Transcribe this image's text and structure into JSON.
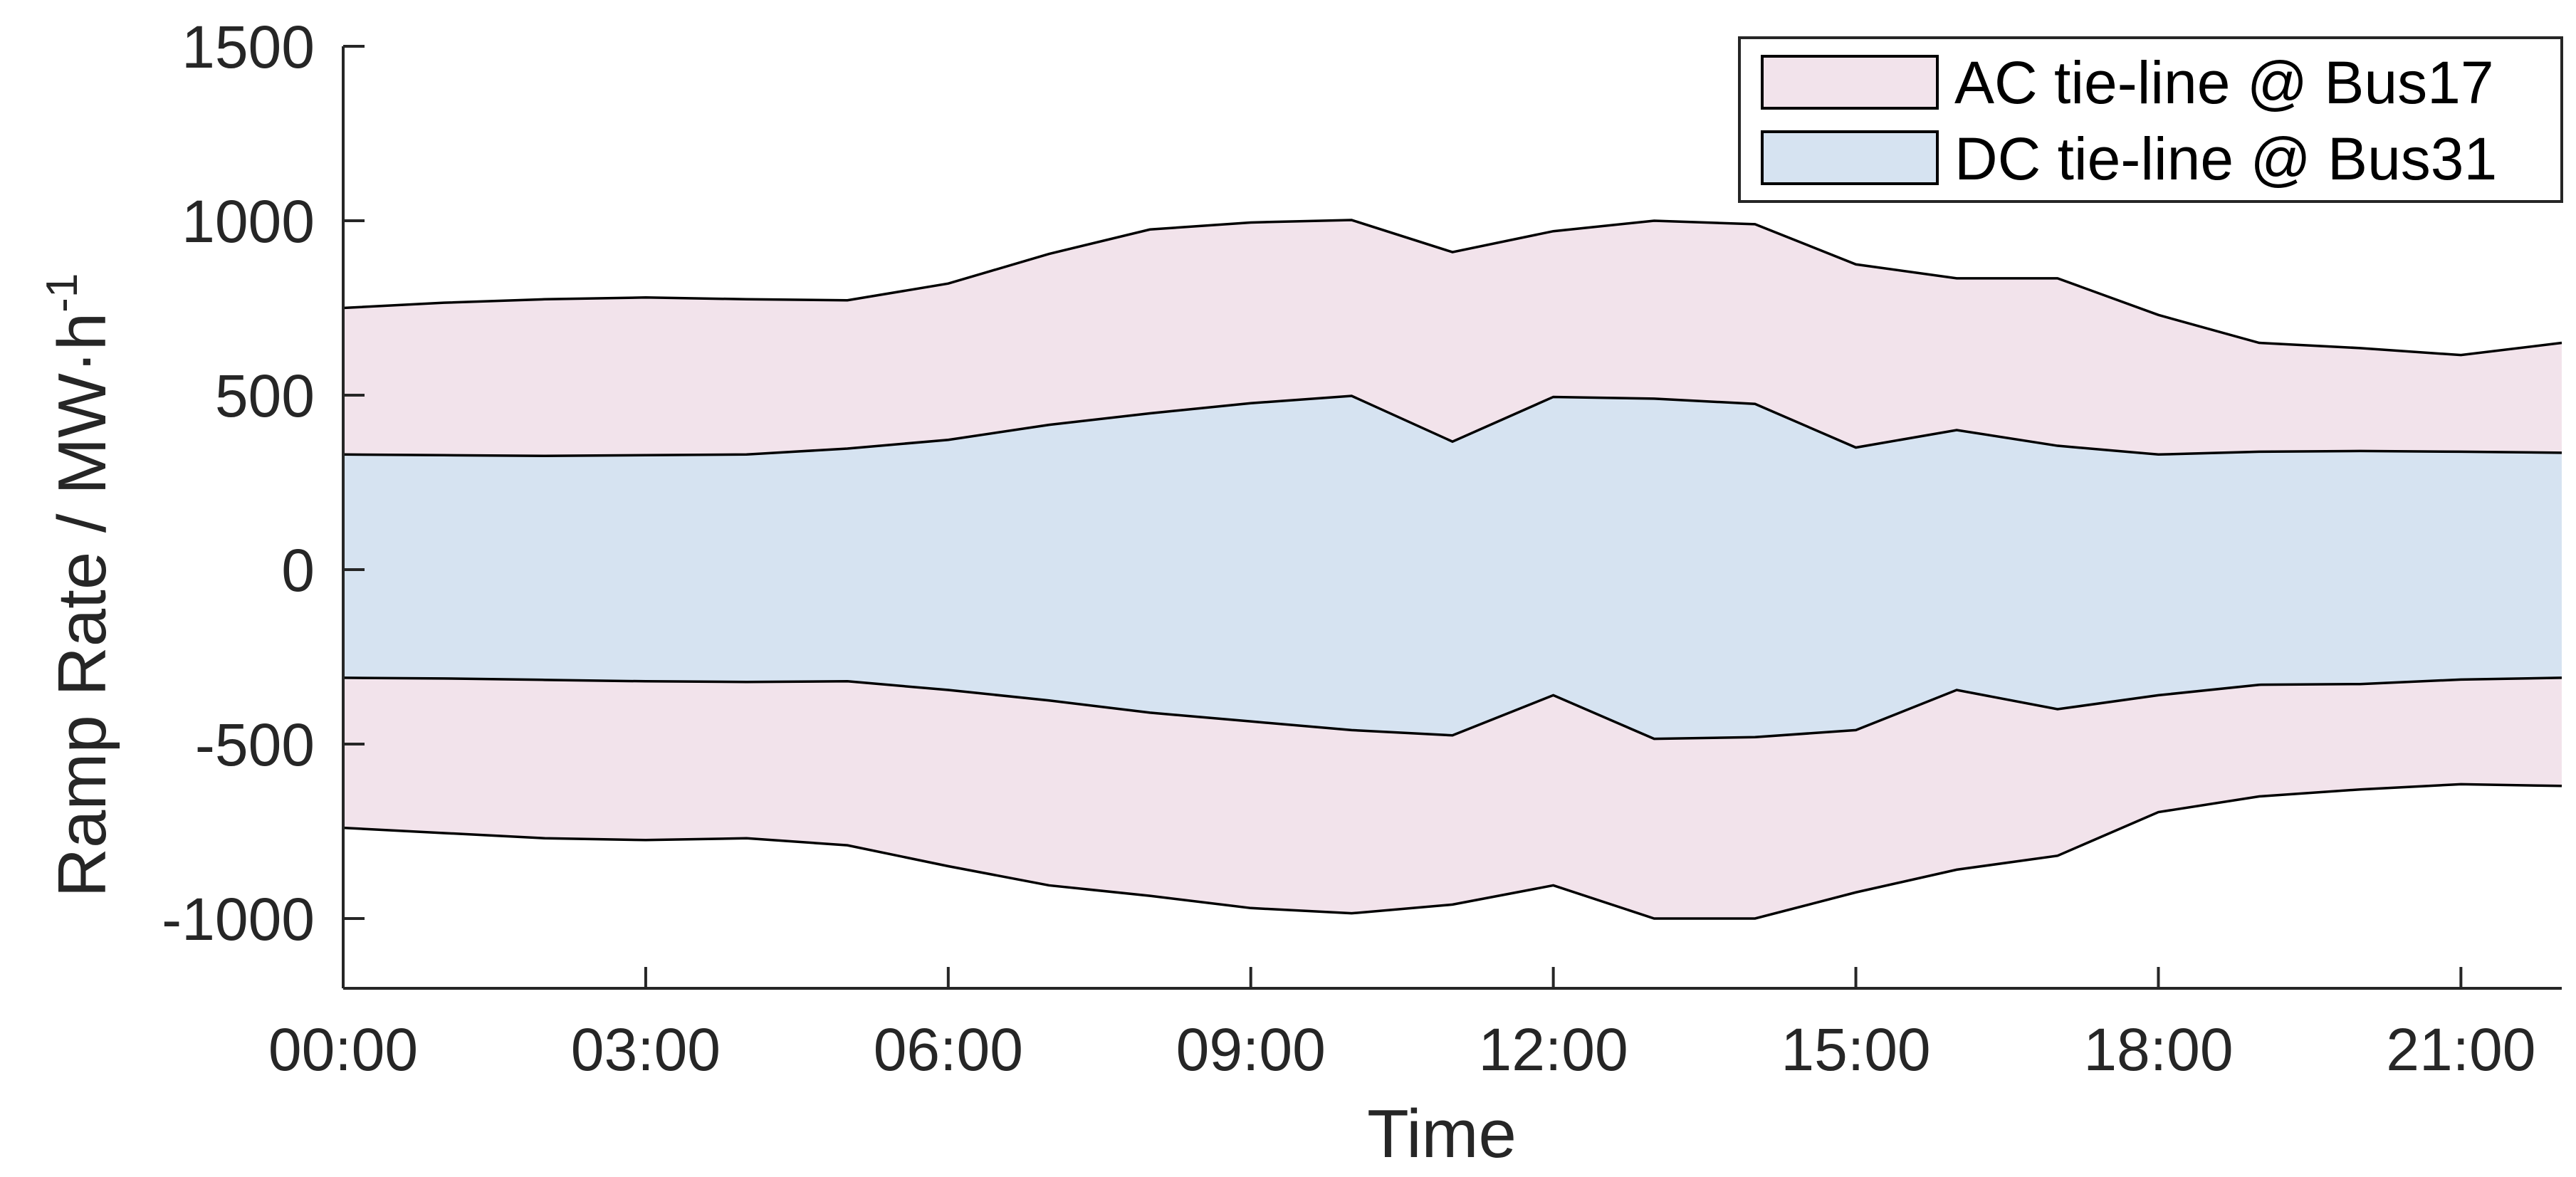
{
  "chart_data": {
    "type": "area",
    "x": [
      0,
      1,
      2,
      3,
      4,
      5,
      6,
      7,
      8,
      9,
      10,
      11,
      12,
      13,
      14,
      15,
      16,
      17,
      18,
      19,
      20,
      21,
      22
    ],
    "x_tick_values": [
      0,
      3,
      6,
      9,
      12,
      15,
      18,
      21
    ],
    "x_tick_labels": [
      "00:00",
      "03:00",
      "06:00",
      "09:00",
      "12:00",
      "15:00",
      "18:00",
      "21:00"
    ],
    "xlim": [
      0,
      22
    ],
    "ylim": [
      -1200,
      1500
    ],
    "y_ticks": [
      -1000,
      -500,
      0,
      500,
      1000,
      1500
    ],
    "y_tick_labels": [
      "-1000",
      "-500",
      "0",
      "500",
      "1000",
      "1500"
    ],
    "xlabel": "Time",
    "ylabel": "Ramp Rate / MW·h",
    "ylabel_superscript": "-1",
    "legend_position": "top-right",
    "grid": false,
    "series": [
      {
        "name": "AC tie-line @ Bus17",
        "color": "#f2e3eb",
        "upper": [
          750,
          765,
          775,
          780,
          775,
          772,
          820,
          905,
          975,
          995,
          1002,
          910,
          970,
          1000,
          990,
          875,
          835,
          835,
          730,
          650,
          635,
          615,
          650
        ],
        "lower": [
          -740,
          -755,
          -770,
          -775,
          -770,
          -790,
          -850,
          -905,
          -935,
          -970,
          -985,
          -960,
          -905,
          -1000,
          -1000,
          -925,
          -860,
          -820,
          -695,
          -650,
          -630,
          -615,
          -620
        ]
      },
      {
        "name": "DC tie-line @ Bus31",
        "color": "#d6e3f1",
        "upper": [
          330,
          328,
          326,
          328,
          330,
          347,
          372,
          415,
          448,
          477,
          498,
          367,
          495,
          490,
          475,
          350,
          400,
          355,
          330,
          338,
          340,
          338,
          335
        ],
        "lower": [
          -310,
          -312,
          -316,
          -320,
          -322,
          -320,
          -345,
          -375,
          -410,
          -435,
          -460,
          -475,
          -360,
          -485,
          -480,
          -460,
          -345,
          -400,
          -360,
          -330,
          -328,
          -315,
          -310
        ]
      }
    ]
  }
}
